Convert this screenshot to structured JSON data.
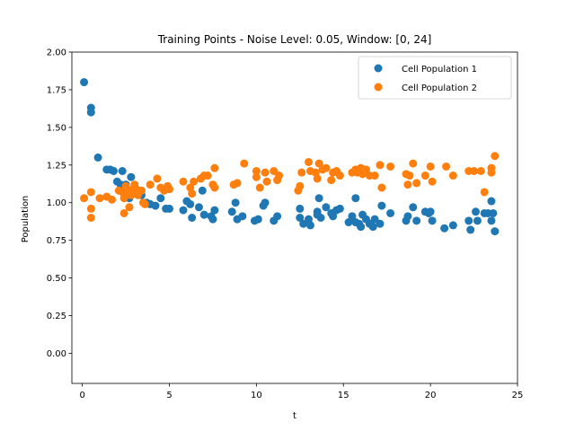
{
  "chart_data": {
    "type": "scatter",
    "title": "Training Points - Noise Level: 0.05, Window: [0, 24]",
    "xlabel": "t",
    "ylabel": "Population",
    "xlim": [
      -0.6,
      25.0
    ],
    "ylim": [
      -0.2,
      2.0
    ],
    "xticks": [
      0,
      5,
      10,
      15,
      20,
      25
    ],
    "yticks": [
      0.0,
      0.25,
      0.5,
      0.75,
      1.0,
      1.25,
      1.5,
      1.75,
      2.0
    ],
    "xtick_labels": [
      "0",
      "5",
      "10",
      "15",
      "20",
      "25"
    ],
    "ytick_labels": [
      "0.00",
      "0.25",
      "0.50",
      "0.75",
      "1.00",
      "1.25",
      "1.50",
      "1.75",
      "2.00"
    ],
    "grid": false,
    "legend_position": "top-right",
    "colors": {
      "series1": "#1f77b4",
      "series2": "#ff7f0e"
    },
    "series": [
      {
        "name": "Cell Population 1",
        "points": [
          [
            0.1,
            1.8
          ],
          [
            0.5,
            1.63
          ],
          [
            0.5,
            1.6
          ],
          [
            0.9,
            1.3
          ],
          [
            1.4,
            1.22
          ],
          [
            1.6,
            1.22
          ],
          [
            1.8,
            1.21
          ],
          [
            2.0,
            1.14
          ],
          [
            2.2,
            1.12
          ],
          [
            2.3,
            1.21
          ],
          [
            2.5,
            1.12
          ],
          [
            2.7,
            1.03
          ],
          [
            2.8,
            1.17
          ],
          [
            3.0,
            1.1
          ],
          [
            3.2,
            1.06
          ],
          [
            3.4,
            1.05
          ],
          [
            3.7,
            1.0
          ],
          [
            3.9,
            0.99
          ],
          [
            4.2,
            0.98
          ],
          [
            4.5,
            1.03
          ],
          [
            4.8,
            0.96
          ],
          [
            5.0,
            0.96
          ],
          [
            5.8,
            0.95
          ],
          [
            6.0,
            1.01
          ],
          [
            6.2,
            0.99
          ],
          [
            6.3,
            0.9
          ],
          [
            6.7,
            0.97
          ],
          [
            6.9,
            1.08
          ],
          [
            7.0,
            0.92
          ],
          [
            7.4,
            0.91
          ],
          [
            7.5,
            0.89
          ],
          [
            7.6,
            0.95
          ],
          [
            8.6,
            0.94
          ],
          [
            8.8,
            1.0
          ],
          [
            8.9,
            0.89
          ],
          [
            9.2,
            0.91
          ],
          [
            9.9,
            0.88
          ],
          [
            10.1,
            0.89
          ],
          [
            10.4,
            0.98
          ],
          [
            10.5,
            1.0
          ],
          [
            11.0,
            0.88
          ],
          [
            11.2,
            0.91
          ],
          [
            12.5,
            0.96
          ],
          [
            12.5,
            0.9
          ],
          [
            12.7,
            0.86
          ],
          [
            13.0,
            0.89
          ],
          [
            13.1,
            0.85
          ],
          [
            13.5,
            0.94
          ],
          [
            13.5,
            0.92
          ],
          [
            13.6,
            1.03
          ],
          [
            13.7,
            0.9
          ],
          [
            14.0,
            0.97
          ],
          [
            14.3,
            0.93
          ],
          [
            14.4,
            0.91
          ],
          [
            14.6,
            0.95
          ],
          [
            14.8,
            0.96
          ],
          [
            15.3,
            0.87
          ],
          [
            15.5,
            0.91
          ],
          [
            15.7,
            1.03
          ],
          [
            15.7,
            0.87
          ],
          [
            15.9,
            0.86
          ],
          [
            16.0,
            0.84
          ],
          [
            16.1,
            0.92
          ],
          [
            16.3,
            0.89
          ],
          [
            16.5,
            0.86
          ],
          [
            16.7,
            0.84
          ],
          [
            16.8,
            0.89
          ],
          [
            17.1,
            0.86
          ],
          [
            17.2,
            0.98
          ],
          [
            17.7,
            0.93
          ],
          [
            18.6,
            0.88
          ],
          [
            18.7,
            0.91
          ],
          [
            19.0,
            0.97
          ],
          [
            19.2,
            0.88
          ],
          [
            19.7,
            0.94
          ],
          [
            19.9,
            0.93
          ],
          [
            20.0,
            0.94
          ],
          [
            20.1,
            0.88
          ],
          [
            20.8,
            0.83
          ],
          [
            21.3,
            0.85
          ],
          [
            22.2,
            0.88
          ],
          [
            22.3,
            0.82
          ],
          [
            22.6,
            0.94
          ],
          [
            22.7,
            0.88
          ],
          [
            23.1,
            0.93
          ],
          [
            23.3,
            0.93
          ],
          [
            23.5,
            1.01
          ],
          [
            23.5,
            0.88
          ],
          [
            23.6,
            0.93
          ],
          [
            23.7,
            0.81
          ]
        ]
      },
      {
        "name": "Cell Population 2",
        "points": [
          [
            0.1,
            1.03
          ],
          [
            0.5,
            1.07
          ],
          [
            0.5,
            0.96
          ],
          [
            0.5,
            0.9
          ],
          [
            1.0,
            1.03
          ],
          [
            1.4,
            1.04
          ],
          [
            1.7,
            1.02
          ],
          [
            2.1,
            1.08
          ],
          [
            2.3,
            1.07
          ],
          [
            2.4,
            0.93
          ],
          [
            2.4,
            1.03
          ],
          [
            2.5,
            1.11
          ],
          [
            2.6,
            1.07
          ],
          [
            2.7,
            0.97
          ],
          [
            2.8,
            1.05
          ],
          [
            2.9,
            1.09
          ],
          [
            3.0,
            1.12
          ],
          [
            3.1,
            1.09
          ],
          [
            3.2,
            1.05
          ],
          [
            3.4,
            1.08
          ],
          [
            3.5,
            1.0
          ],
          [
            3.6,
            0.99
          ],
          [
            3.9,
            1.12
          ],
          [
            4.3,
            1.16
          ],
          [
            4.5,
            1.1
          ],
          [
            4.7,
            1.08
          ],
          [
            4.9,
            1.11
          ],
          [
            5.0,
            1.09
          ],
          [
            5.8,
            1.14
          ],
          [
            6.2,
            1.1
          ],
          [
            6.3,
            1.06
          ],
          [
            6.4,
            1.14
          ],
          [
            6.8,
            1.16
          ],
          [
            7.0,
            1.18
          ],
          [
            7.2,
            1.18
          ],
          [
            7.5,
            1.12
          ],
          [
            7.6,
            1.1
          ],
          [
            7.6,
            1.23
          ],
          [
            8.7,
            1.12
          ],
          [
            8.9,
            1.13
          ],
          [
            9.3,
            1.26
          ],
          [
            10.0,
            1.21
          ],
          [
            10.0,
            1.17
          ],
          [
            10.2,
            1.1
          ],
          [
            10.5,
            1.2
          ],
          [
            10.6,
            1.14
          ],
          [
            11.0,
            1.21
          ],
          [
            11.2,
            1.15
          ],
          [
            11.3,
            1.18
          ],
          [
            12.4,
            1.08
          ],
          [
            12.5,
            1.11
          ],
          [
            12.6,
            1.2
          ],
          [
            13.0,
            1.27
          ],
          [
            13.1,
            1.21
          ],
          [
            13.4,
            1.2
          ],
          [
            13.5,
            1.16
          ],
          [
            13.6,
            1.26
          ],
          [
            13.8,
            1.22
          ],
          [
            14.0,
            1.23
          ],
          [
            14.3,
            1.15
          ],
          [
            14.4,
            1.2
          ],
          [
            14.6,
            1.21
          ],
          [
            14.8,
            1.18
          ],
          [
            15.5,
            1.2
          ],
          [
            15.7,
            1.22
          ],
          [
            15.8,
            1.2
          ],
          [
            16.0,
            1.23
          ],
          [
            16.1,
            1.19
          ],
          [
            16.3,
            1.22
          ],
          [
            16.5,
            1.18
          ],
          [
            16.8,
            1.18
          ],
          [
            17.1,
            1.25
          ],
          [
            17.2,
            1.1
          ],
          [
            17.7,
            1.24
          ],
          [
            18.6,
            1.19
          ],
          [
            18.7,
            1.12
          ],
          [
            18.8,
            1.18
          ],
          [
            19.0,
            1.26
          ],
          [
            19.2,
            1.13
          ],
          [
            19.7,
            1.18
          ],
          [
            20.0,
            1.24
          ],
          [
            20.1,
            1.14
          ],
          [
            20.9,
            1.24
          ],
          [
            21.3,
            1.18
          ],
          [
            22.2,
            1.21
          ],
          [
            22.5,
            1.21
          ],
          [
            22.9,
            1.21
          ],
          [
            23.1,
            1.07
          ],
          [
            23.5,
            1.23
          ],
          [
            23.5,
            1.2
          ],
          [
            23.7,
            1.31
          ]
        ]
      }
    ]
  }
}
